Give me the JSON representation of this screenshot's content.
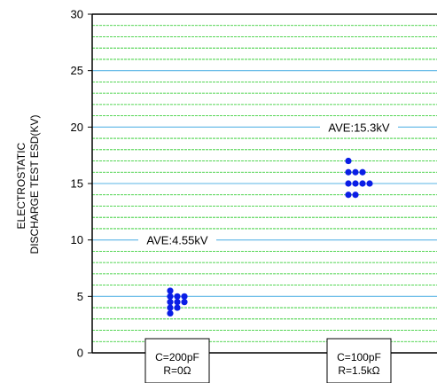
{
  "chart_data": {
    "type": "scatter",
    "title": "",
    "ylabel_lines": [
      "ELECTROSTATIC",
      "DISCHARGE TEST ESD(KV)"
    ],
    "xlabel": "",
    "ylim": [
      0,
      30
    ],
    "yticks": [
      0,
      5,
      10,
      15,
      20,
      25,
      30
    ],
    "minor_step": 1,
    "categories": [
      {
        "lines": [
          "C=200pF",
          "R=0Ω"
        ]
      },
      {
        "lines": [
          "C=100pF",
          "R=1.5kΩ"
        ]
      }
    ],
    "series": [
      {
        "category_index": 0,
        "points": [
          {
            "offset": -1,
            "y": 5.5
          },
          {
            "offset": -1,
            "y": 5.0
          },
          {
            "offset": 0,
            "y": 5.0
          },
          {
            "offset": 1,
            "y": 5.0
          },
          {
            "offset": -1,
            "y": 4.5
          },
          {
            "offset": 0,
            "y": 4.5
          },
          {
            "offset": 1,
            "y": 4.5
          },
          {
            "offset": -1,
            "y": 4.0
          },
          {
            "offset": 0,
            "y": 4.0
          },
          {
            "offset": -1,
            "y": 3.5
          }
        ]
      },
      {
        "category_index": 1,
        "points": [
          {
            "offset": -1.5,
            "y": 17.0
          },
          {
            "offset": -1.5,
            "y": 16.0
          },
          {
            "offset": -0.5,
            "y": 16.0
          },
          {
            "offset": 0.5,
            "y": 16.0
          },
          {
            "offset": -1.5,
            "y": 15.0
          },
          {
            "offset": -0.5,
            "y": 15.0
          },
          {
            "offset": 0.5,
            "y": 15.0
          },
          {
            "offset": 1.5,
            "y": 15.0
          },
          {
            "offset": -1.5,
            "y": 14.0
          },
          {
            "offset": -0.5,
            "y": 14.0
          }
        ]
      }
    ],
    "annotations": [
      {
        "text": "AVE:4.55kV",
        "category_index": 0,
        "y": 10
      },
      {
        "text": "AVE:15.3kV",
        "category_index": 1,
        "y": 20
      }
    ],
    "grid": true,
    "colors": {
      "points": "#0a1ee6",
      "major_grid": "#5ab4e6",
      "minor_grid": "#1ec81e",
      "axis": "#000000"
    }
  }
}
